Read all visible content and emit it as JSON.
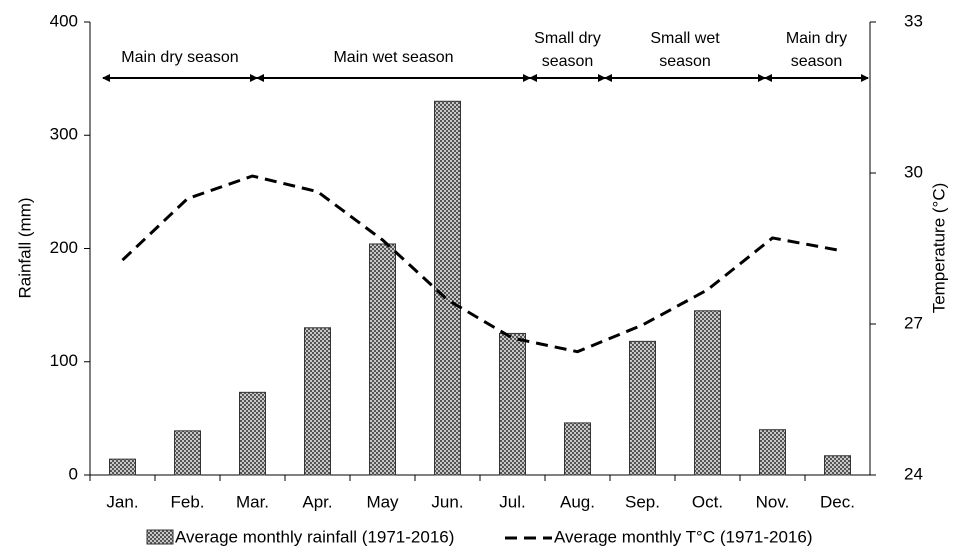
{
  "chart_data": {
    "type": "bar",
    "categories": [
      "Jan.",
      "Feb.",
      "Mar.",
      "Apr.",
      "May",
      "Jun.",
      "Jul.",
      "Aug.",
      "Sep.",
      "Oct.",
      "Nov.",
      "Dec."
    ],
    "series": [
      {
        "name": "Average monthly rainfall (1971-2016)",
        "color": "#9a9a9a",
        "values": [
          14,
          39,
          73,
          130,
          204,
          330,
          125,
          46,
          118,
          145,
          40,
          17
        ]
      },
      {
        "name": "Average monthly T°C (1971-2016)",
        "type": "line",
        "axis": "y2",
        "color": "#000000",
        "values": [
          28.27,
          29.49,
          29.94,
          29.63,
          28.67,
          27.48,
          26.72,
          26.45,
          26.98,
          27.68,
          28.71,
          28.47
        ]
      }
    ],
    "ylabel": "Rainfall (mm)",
    "y2label": "Temperature (°C)",
    "ylim": [
      0,
      400
    ],
    "yticks": [
      0,
      100,
      200,
      300,
      400
    ],
    "y2lim": [
      24,
      33
    ],
    "y2ticks": [
      24,
      27,
      30,
      33
    ],
    "annotations": [
      {
        "lines": [
          "Main dry season"
        ]
      },
      {
        "lines": [
          "Main wet season"
        ]
      },
      {
        "lines": [
          "Small dry",
          "season"
        ]
      },
      {
        "lines": [
          "Small wet",
          "season"
        ]
      },
      {
        "lines": [
          "Main dry",
          "season"
        ]
      }
    ]
  }
}
